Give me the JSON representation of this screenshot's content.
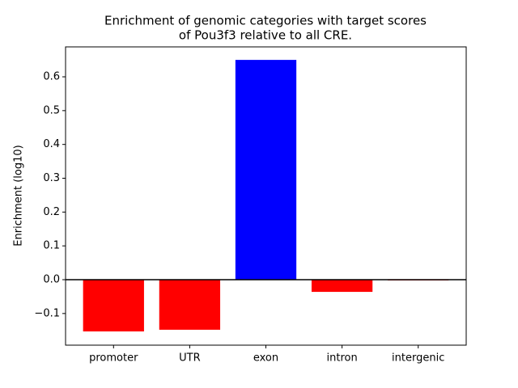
{
  "chart_data": {
    "type": "bar",
    "title": [
      "Enrichment of genomic categories with target scores",
      "of Pou3f3 relative to all CRE."
    ],
    "ylabel": "Enrichment (log10)",
    "categories": [
      "promoter",
      "UTR",
      "exon",
      "intron",
      "intergenic"
    ],
    "values": [
      -0.153,
      -0.148,
      0.65,
      -0.036,
      -0.002
    ],
    "colors": [
      "#ff0000",
      "#ff0000",
      "#0000ff",
      "#ff0000",
      "#ff0000"
    ],
    "ylim": [
      -0.1936,
      0.6885
    ],
    "yticks": [
      {
        "value": -0.1,
        "label": "−0.1"
      },
      {
        "value": 0,
        "label": "0.0"
      },
      0.1,
      0.2,
      0.3,
      0.4,
      0.5,
      0.6
    ]
  }
}
